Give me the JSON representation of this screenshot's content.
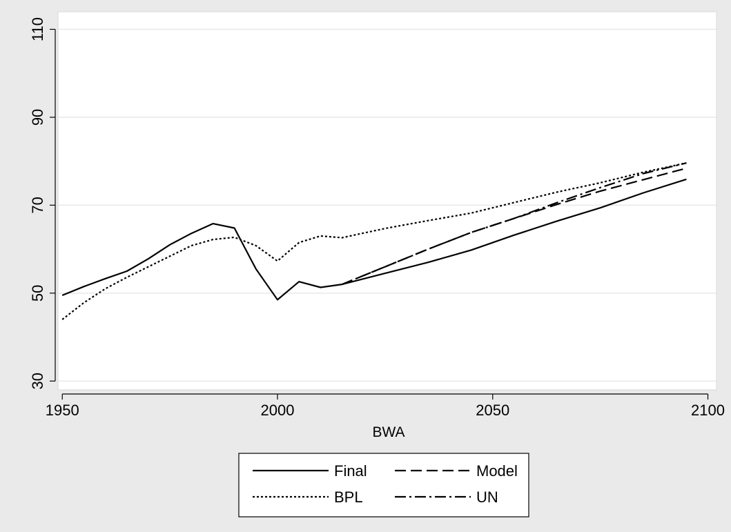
{
  "chart_data": {
    "type": "line",
    "title": "",
    "xlabel": "BWA",
    "ylabel": "",
    "xlim": [
      1949,
      2102
    ],
    "ylim": [
      28,
      114
    ],
    "x_ticks": [
      1950,
      2000,
      2050,
      2100
    ],
    "y_ticks": [
      30,
      50,
      70,
      90,
      110
    ],
    "grid": true,
    "legend_position": "bottom",
    "series": [
      {
        "name": "Final",
        "style": "solid",
        "points": [
          [
            1950,
            49.5
          ],
          [
            1955,
            51.5
          ],
          [
            1960,
            53.3
          ],
          [
            1965,
            55
          ],
          [
            1970,
            57.8
          ],
          [
            1975,
            61
          ],
          [
            1980,
            63.6
          ],
          [
            1985,
            65.8
          ],
          [
            1990,
            64.8
          ],
          [
            1995,
            55.5
          ],
          [
            2000,
            48.5
          ],
          [
            2005,
            52.6
          ],
          [
            2010,
            51.3
          ],
          [
            2015,
            52
          ],
          [
            2025,
            54.5
          ],
          [
            2035,
            57
          ],
          [
            2045,
            59.8
          ],
          [
            2055,
            63.2
          ],
          [
            2065,
            66.4
          ],
          [
            2075,
            69.4
          ],
          [
            2085,
            72.8
          ],
          [
            2095,
            75.9
          ]
        ]
      },
      {
        "name": "Model",
        "style": "dash",
        "points": [
          [
            2015,
            52
          ],
          [
            2025,
            56
          ],
          [
            2035,
            60
          ],
          [
            2045,
            63.8
          ],
          [
            2055,
            67
          ],
          [
            2065,
            70.2
          ],
          [
            2075,
            73.2
          ],
          [
            2085,
            75.8
          ],
          [
            2095,
            78.4
          ]
        ]
      },
      {
        "name": "BPL",
        "style": "dot",
        "points": [
          [
            1950,
            44
          ],
          [
            1955,
            47.8
          ],
          [
            1960,
            51
          ],
          [
            1965,
            53.6
          ],
          [
            1970,
            56
          ],
          [
            1975,
            58.4
          ],
          [
            1980,
            60.8
          ],
          [
            1985,
            62.2
          ],
          [
            1990,
            62.7
          ],
          [
            1995,
            60.8
          ],
          [
            2000,
            57.3
          ],
          [
            2005,
            61.5
          ],
          [
            2010,
            63
          ],
          [
            2015,
            62.6
          ],
          [
            2025,
            64.7
          ],
          [
            2035,
            66.5
          ],
          [
            2045,
            68.2
          ],
          [
            2055,
            70.6
          ],
          [
            2065,
            73
          ],
          [
            2075,
            75.1
          ],
          [
            2085,
            77.5
          ],
          [
            2095,
            79.6
          ]
        ]
      },
      {
        "name": "UN",
        "style": "dashdot",
        "points": [
          [
            2015,
            52
          ],
          [
            2025,
            56
          ],
          [
            2035,
            60
          ],
          [
            2045,
            63.8
          ],
          [
            2055,
            67
          ],
          [
            2065,
            70.6
          ],
          [
            2075,
            74
          ],
          [
            2085,
            77.2
          ],
          [
            2095,
            79.6
          ]
        ]
      }
    ]
  }
}
